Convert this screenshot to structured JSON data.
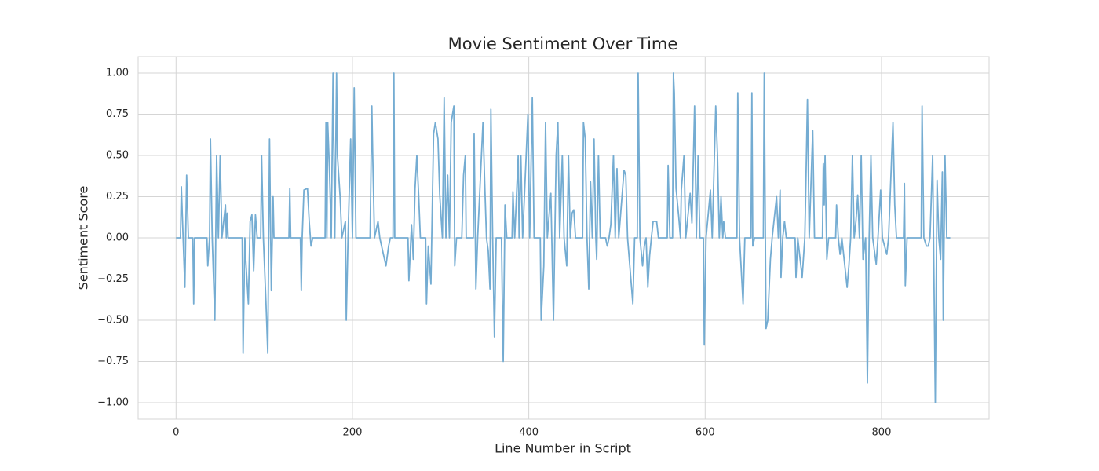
{
  "chart_data": {
    "type": "line",
    "title": "Movie Sentiment Over Time",
    "xlabel": "Line Number in Script",
    "ylabel": "Sentiment Score",
    "color": "#74acd2",
    "grid": true,
    "xlim": [
      -43,
      922
    ],
    "ylim": [
      -1.1,
      1.1
    ],
    "xticks": [
      0,
      200,
      400,
      600,
      800
    ],
    "yticks": [
      {
        "value": -1,
        "label": "−1.00"
      },
      {
        "value": -0.75,
        "label": "−0.75"
      },
      {
        "value": -0.5,
        "label": "−0.50"
      },
      {
        "value": -0.25,
        "label": "−0.25"
      },
      {
        "value": 0,
        "label": "0.00"
      },
      {
        "value": 0.25,
        "label": "0.25"
      },
      {
        "value": 0.5,
        "label": "0.50"
      },
      {
        "value": 0.75,
        "label": "0.75"
      },
      {
        "value": 1,
        "label": "1.00"
      }
    ],
    "x": [
      0,
      5,
      6,
      8,
      10,
      12,
      14,
      19,
      20,
      21,
      35,
      36,
      38,
      39,
      41,
      44,
      46,
      48,
      50,
      52,
      56,
      57,
      58,
      59,
      75,
      76,
      78,
      79,
      82,
      84,
      86,
      88,
      90,
      92,
      96,
      97,
      99,
      102,
      104,
      106,
      108,
      110,
      111,
      128,
      129,
      130,
      141,
      142,
      143,
      145,
      149,
      151,
      153,
      155,
      169,
      170,
      171,
      172,
      174,
      176,
      178,
      180,
      182,
      183,
      186,
      188,
      192,
      193,
      195,
      198,
      200,
      202,
      204,
      220,
      222,
      223,
      225,
      229,
      231,
      238,
      241,
      243,
      246,
      247,
      248,
      263,
      264,
      267,
      269,
      271,
      273,
      275,
      277,
      283,
      284,
      286,
      289,
      292,
      294,
      297,
      299,
      302,
      304,
      306,
      308,
      310,
      312,
      315,
      316,
      318,
      324,
      326,
      328,
      329,
      337,
      338,
      340,
      342,
      348,
      350,
      352,
      354,
      356,
      357,
      359,
      361,
      363,
      369,
      371,
      373,
      375,
      381,
      382,
      384,
      388,
      389,
      391,
      393,
      399,
      401,
      404,
      406,
      413,
      414,
      417,
      419,
      421,
      425,
      428,
      431,
      433,
      435,
      438,
      440,
      443,
      445,
      447,
      449,
      451,
      453,
      461,
      462,
      464,
      466,
      468,
      470,
      472,
      474,
      476,
      477,
      479,
      481,
      487,
      489,
      491,
      493,
      496,
      498,
      500,
      502,
      508,
      510,
      512,
      518,
      520,
      523,
      524,
      526,
      529,
      531,
      533,
      535,
      537,
      539,
      541,
      545,
      547,
      557,
      558,
      560,
      563,
      564,
      565,
      567,
      570,
      572,
      573,
      576,
      578,
      583,
      585,
      588,
      590,
      592,
      594,
      598,
      599,
      601,
      606,
      608,
      612,
      614,
      616,
      618,
      620,
      621,
      623,
      636,
      637,
      639,
      643,
      645,
      652,
      653,
      654,
      656,
      666,
      667,
      669,
      671,
      674,
      676,
      681,
      683,
      685,
      686,
      688,
      690,
      692,
      702,
      703,
      705,
      710,
      713,
      714,
      716,
      718,
      722,
      724,
      733,
      734,
      735,
      736,
      738,
      740,
      748,
      749,
      751,
      753,
      755,
      761,
      763,
      765,
      767,
      769,
      771,
      773,
      775,
      777,
      779,
      782,
      784,
      786,
      788,
      790,
      794,
      796,
      799,
      801,
      806,
      808,
      813,
      815,
      817,
      825,
      826,
      827,
      829,
      845,
      846,
      848,
      851,
      853,
      855,
      858,
      861,
      863,
      865,
      867,
      869,
      870,
      872,
      874,
      878
    ],
    "values": [
      0,
      0,
      0.31,
      0,
      -0.3,
      0.38,
      0,
      0,
      -0.4,
      0,
      0,
      -0.17,
      0,
      0.6,
      0,
      -0.5,
      0.5,
      0,
      0.5,
      0,
      0.2,
      0,
      0.15,
      0,
      0,
      -0.7,
      0,
      -0.13,
      -0.4,
      0.1,
      0.14,
      -0.2,
      0.14,
      0,
      0,
      0.5,
      0,
      -0.4,
      -0.7,
      0.6,
      -0.32,
      0.25,
      0,
      0,
      0.3,
      0,
      0,
      -0.32,
      0,
      0.29,
      0.3,
      0.1,
      -0.05,
      0,
      0,
      0.7,
      0,
      0.7,
      0.4,
      0,
      1.0,
      0,
      1.0,
      0.5,
      0.25,
      0,
      0.1,
      -0.5,
      0,
      0.6,
      0,
      0.91,
      0,
      0,
      0.8,
      0.5,
      0,
      0.1,
      0,
      -0.17,
      -0.05,
      0,
      0,
      1.0,
      0,
      0,
      -0.26,
      0.08,
      -0.13,
      0.3,
      0.5,
      0.27,
      0,
      0,
      -0.4,
      -0.05,
      -0.28,
      0.63,
      0.7,
      0.6,
      0.26,
      0,
      0.85,
      0,
      0.38,
      0,
      0.7,
      0.8,
      -0.17,
      0,
      0,
      0.38,
      0.5,
      0,
      0,
      0.63,
      -0.31,
      0,
      0.7,
      0.33,
      0,
      -0.08,
      -0.31,
      0.78,
      0,
      -0.6,
      0,
      0,
      -0.75,
      0.2,
      0,
      0,
      0.28,
      0,
      0.5,
      0,
      0.5,
      0,
      0.75,
      0,
      0.85,
      0,
      0,
      -0.5,
      -0.17,
      0.7,
      0,
      0.27,
      -0.5,
      0.5,
      0.7,
      0,
      0.5,
      0,
      -0.17,
      0.5,
      0,
      0.15,
      0.17,
      0,
      0,
      0.7,
      0.6,
      0,
      -0.31,
      0.34,
      0,
      0.6,
      0,
      -0.13,
      0.5,
      0,
      0,
      -0.05,
      0,
      0.08,
      0.5,
      0,
      0.42,
      0,
      0.41,
      0.38,
      0,
      -0.4,
      0,
      0,
      1.0,
      0,
      -0.17,
      -0.05,
      0,
      -0.3,
      -0.11,
      0,
      0.1,
      0.1,
      0,
      0,
      0.44,
      0,
      0,
      1.0,
      0.88,
      0.3,
      0.13,
      0,
      0.29,
      0.5,
      0,
      0.27,
      0.09,
      0.8,
      0,
      0.5,
      0,
      0,
      -0.65,
      0,
      0.29,
      0,
      0.8,
      0.5,
      0,
      0.25,
      0,
      0.1,
      0,
      0,
      0.88,
      0,
      -0.4,
      0,
      0,
      0.88,
      -0.05,
      0,
      0,
      1.0,
      -0.55,
      -0.5,
      -0.13,
      0,
      0.25,
      0,
      0.29,
      -0.24,
      0,
      0.1,
      0,
      0,
      -0.24,
      0,
      -0.24,
      0,
      0.26,
      0.84,
      0,
      0.65,
      0,
      0,
      0.45,
      0.2,
      0.5,
      -0.13,
      0,
      0,
      0.2,
      0,
      -0.1,
      0,
      -0.3,
      -0.17,
      0,
      0.5,
      0,
      0.1,
      0.26,
      0,
      0.5,
      -0.13,
      0,
      -0.88,
      0,
      0.5,
      0,
      -0.16,
      0,
      0.29,
      0,
      -0.1,
      0,
      0.7,
      0.2,
      0,
      0,
      0.33,
      -0.29,
      0,
      0,
      0.8,
      0,
      -0.05,
      -0.05,
      0,
      0.5,
      -1.0,
      0.35,
      0,
      -0.13,
      0.4,
      -0.5,
      0.5,
      0,
      0
    ]
  }
}
